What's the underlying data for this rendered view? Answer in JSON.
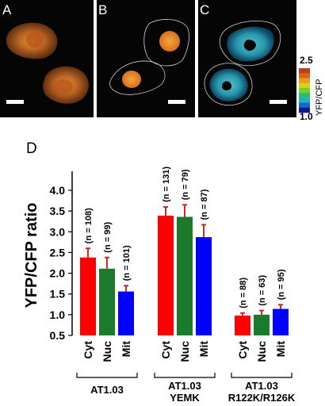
{
  "panels": {
    "a_letter": "A",
    "b_letter": "B",
    "c_letter": "C",
    "d_letter": "D"
  },
  "colorbar": {
    "max_label": "2.5",
    "min_label": "1.0",
    "axis_label": "YFP/CFP",
    "colors": [
      "#0a1a8c",
      "#1466c8",
      "#1fb0c8",
      "#2bbf6a",
      "#7ccf2a",
      "#d8d020",
      "#e89a1e",
      "#d8641a",
      "#b8401a"
    ]
  },
  "colors": {
    "cyt": "#ff0000",
    "nuc": "#1c7a2c",
    "mit": "#0000ff",
    "error": "#cc2a2a"
  },
  "chart_data": {
    "type": "bar",
    "title": "",
    "ylabel": "YFP/CFP ratio",
    "xlabel": "",
    "ylim": [
      0.5,
      4.0
    ],
    "yticks": [
      "0.5",
      "1.0",
      "1.5",
      "2.0",
      "2.5",
      "3.0",
      "3.5",
      "4.0"
    ],
    "categories": [
      "Cyt",
      "Nuc",
      "Mit"
    ],
    "groups": [
      {
        "name": "AT1.03",
        "values": [
          2.38,
          2.11,
          1.56
        ],
        "errors": [
          0.22,
          0.27,
          0.14
        ],
        "n_labels": [
          "(n = 108)",
          "(n = 99)",
          "(n = 101)"
        ]
      },
      {
        "name": "AT1.03 YEMK",
        "name_lines": [
          "AT1.03",
          "YEMK"
        ],
        "values": [
          3.39,
          3.36,
          2.87
        ],
        "errors": [
          0.21,
          0.29,
          0.3
        ],
        "n_labels": [
          "(n = 131)",
          "(n = 79)",
          "(n = 87)"
        ]
      },
      {
        "name": "AT1.03 R122K/R126K",
        "name_lines": [
          "AT1.03",
          "R122K/R126K"
        ],
        "values": [
          0.98,
          1.0,
          1.14
        ],
        "errors": [
          0.06,
          0.1,
          0.1
        ],
        "n_labels": [
          "(n = 88)",
          "(n = 63)",
          "(n = 95)"
        ]
      }
    ]
  }
}
